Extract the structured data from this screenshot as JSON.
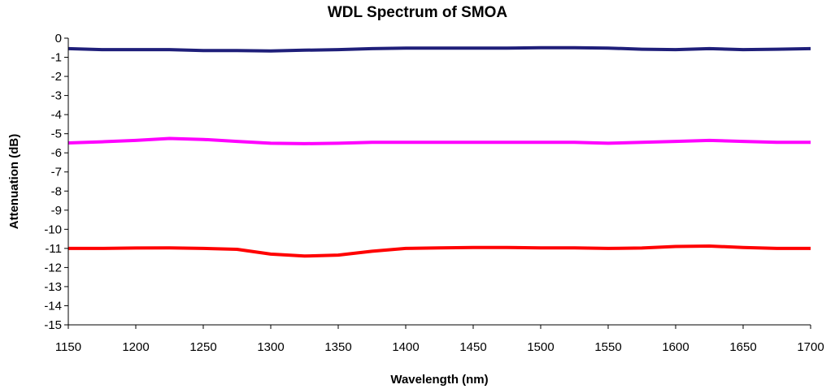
{
  "chart_data": {
    "type": "line",
    "title": "WDL Spectrum of SMOA",
    "xlabel": "Wavelength (nm)",
    "ylabel": "Attenuation (dB)",
    "xlim": [
      1150,
      1700
    ],
    "ylim": [
      -15,
      0
    ],
    "x_ticks": [
      1150,
      1200,
      1250,
      1300,
      1350,
      1400,
      1450,
      1500,
      1550,
      1600,
      1650,
      1700
    ],
    "y_ticks": [
      0,
      -1,
      -2,
      -3,
      -4,
      -5,
      -6,
      -7,
      -8,
      -9,
      -10,
      -11,
      -12,
      -13,
      -14,
      -15
    ],
    "grid": false,
    "legend": "none",
    "x": [
      1150,
      1175,
      1200,
      1225,
      1250,
      1275,
      1300,
      1325,
      1350,
      1375,
      1400,
      1425,
      1450,
      1475,
      1500,
      1525,
      1550,
      1575,
      1600,
      1625,
      1650,
      1675,
      1700
    ],
    "series": [
      {
        "color": "#1f1f7a",
        "values": [
          -0.55,
          -0.6,
          -0.6,
          -0.6,
          -0.65,
          -0.65,
          -0.67,
          -0.63,
          -0.6,
          -0.55,
          -0.52,
          -0.52,
          -0.52,
          -0.52,
          -0.5,
          -0.5,
          -0.52,
          -0.58,
          -0.6,
          -0.55,
          -0.6,
          -0.58,
          -0.55
        ]
      },
      {
        "color": "#ff00ff",
        "values": [
          -5.48,
          -5.42,
          -5.35,
          -5.25,
          -5.3,
          -5.4,
          -5.5,
          -5.52,
          -5.5,
          -5.45,
          -5.45,
          -5.45,
          -5.45,
          -5.45,
          -5.45,
          -5.45,
          -5.5,
          -5.45,
          -5.4,
          -5.35,
          -5.4,
          -5.45,
          -5.45
        ]
      },
      {
        "color": "#ff0000",
        "values": [
          -11.0,
          -11.0,
          -10.98,
          -10.97,
          -11.0,
          -11.05,
          -11.3,
          -11.4,
          -11.35,
          -11.15,
          -11.0,
          -10.97,
          -10.95,
          -10.95,
          -10.97,
          -10.97,
          -11.0,
          -10.98,
          -10.9,
          -10.88,
          -10.95,
          -11.0,
          -11.0
        ]
      }
    ]
  }
}
